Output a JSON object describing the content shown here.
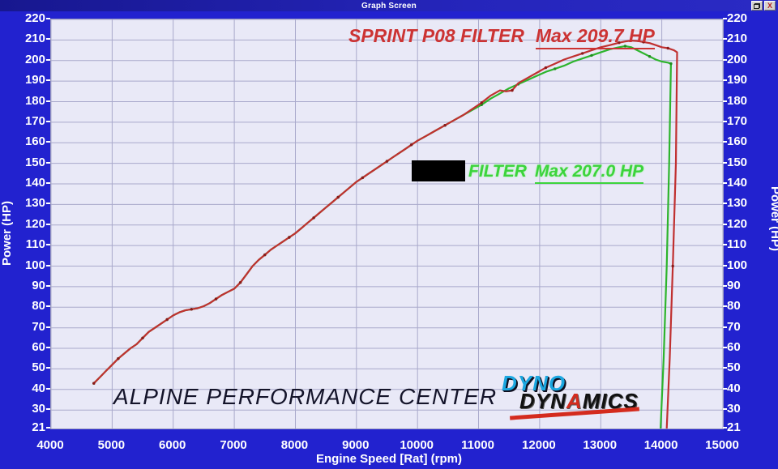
{
  "window": {
    "title": "Graph Screen",
    "restore_button": "restore",
    "close_button": "X"
  },
  "chart_data": {
    "type": "line",
    "xlabel": "Engine Speed [Rat] (rpm)",
    "ylabel_left": "Power (HP)",
    "ylabel_right": "Power (HP)",
    "xlim": [
      4000,
      15000
    ],
    "ylim": [
      21,
      220
    ],
    "x_ticks": [
      4000,
      5000,
      6000,
      7000,
      8000,
      9000,
      10000,
      11000,
      12000,
      13000,
      14000,
      15000
    ],
    "y_ticks": [
      220,
      210,
      200,
      190,
      180,
      170,
      160,
      150,
      140,
      130,
      120,
      110,
      100,
      90,
      80,
      70,
      60,
      50,
      40,
      30,
      21
    ],
    "grid": true,
    "legend_position": "annotations-on-plot",
    "series": [
      {
        "name": "SPRINT P08 FILTER",
        "max_label": "Max 209.7 HP",
        "max_hp": 209.7,
        "color": "#c03030",
        "marker_color": "#8b1a1a",
        "points": [
          [
            4700,
            43
          ],
          [
            4800,
            46
          ],
          [
            4900,
            49
          ],
          [
            5000,
            52
          ],
          [
            5100,
            55
          ],
          [
            5200,
            57.5
          ],
          [
            5300,
            60
          ],
          [
            5400,
            62
          ],
          [
            5500,
            65
          ],
          [
            5600,
            68
          ],
          [
            5700,
            70
          ],
          [
            5800,
            72
          ],
          [
            5900,
            74
          ],
          [
            6000,
            76
          ],
          [
            6100,
            77.5
          ],
          [
            6200,
            78.5
          ],
          [
            6300,
            79
          ],
          [
            6400,
            79.5
          ],
          [
            6500,
            80.5
          ],
          [
            6600,
            82
          ],
          [
            6700,
            84
          ],
          [
            6800,
            86
          ],
          [
            6900,
            87.5
          ],
          [
            7000,
            89
          ],
          [
            7100,
            92
          ],
          [
            7200,
            96
          ],
          [
            7300,
            100
          ],
          [
            7400,
            103
          ],
          [
            7500,
            105.5
          ],
          [
            7600,
            108
          ],
          [
            7700,
            110
          ],
          [
            7800,
            112
          ],
          [
            7900,
            114
          ],
          [
            8000,
            116
          ],
          [
            8100,
            118.5
          ],
          [
            8200,
            121
          ],
          [
            8300,
            123.5
          ],
          [
            8400,
            126
          ],
          [
            8500,
            128.5
          ],
          [
            8600,
            131
          ],
          [
            8700,
            133.5
          ],
          [
            8800,
            136
          ],
          [
            8900,
            138.5
          ],
          [
            9000,
            141
          ],
          [
            9100,
            143
          ],
          [
            9200,
            145
          ],
          [
            9300,
            147
          ],
          [
            9400,
            149
          ],
          [
            9500,
            151
          ],
          [
            9600,
            153
          ],
          [
            9700,
            155
          ],
          [
            9800,
            157
          ],
          [
            9900,
            159
          ],
          [
            10000,
            161
          ],
          [
            10150,
            163.5
          ],
          [
            10300,
            166
          ],
          [
            10450,
            168.5
          ],
          [
            10600,
            171
          ],
          [
            10750,
            173.5
          ],
          [
            10900,
            176.5
          ],
          [
            11050,
            179.5
          ],
          [
            11200,
            183
          ],
          [
            11350,
            185.5
          ],
          [
            11450,
            185
          ],
          [
            11550,
            185.5
          ],
          [
            11650,
            189
          ],
          [
            11800,
            191.5
          ],
          [
            11950,
            194
          ],
          [
            12100,
            196.5
          ],
          [
            12250,
            198.5
          ],
          [
            12400,
            200.5
          ],
          [
            12550,
            202
          ],
          [
            12700,
            203.5
          ],
          [
            12850,
            205
          ],
          [
            13000,
            206.5
          ],
          [
            13150,
            207.5
          ],
          [
            13300,
            208.7
          ],
          [
            13400,
            209.3
          ],
          [
            13500,
            209.7
          ],
          [
            13600,
            209.5
          ],
          [
            13700,
            209
          ],
          [
            13800,
            208.5
          ],
          [
            13900,
            207.5
          ],
          [
            14000,
            206.5
          ],
          [
            14100,
            206
          ],
          [
            14200,
            205
          ],
          [
            14250,
            204
          ],
          [
            14230,
            150
          ],
          [
            14180,
            100
          ],
          [
            14130,
            55
          ],
          [
            14080,
            21
          ]
        ]
      },
      {
        "name": "FILTER",
        "redacted_prefix": true,
        "max_label": "Max 207.0 HP",
        "max_hp": 207.0,
        "color": "#2db42d",
        "marker_color": "#1f8c1f",
        "points": [
          [
            4700,
            43
          ],
          [
            4800,
            46
          ],
          [
            4900,
            49
          ],
          [
            5000,
            52
          ],
          [
            5100,
            55
          ],
          [
            5200,
            57.5
          ],
          [
            5300,
            60
          ],
          [
            5400,
            62
          ],
          [
            5500,
            65
          ],
          [
            5600,
            68
          ],
          [
            5700,
            70
          ],
          [
            5800,
            72
          ],
          [
            5900,
            74
          ],
          [
            6000,
            76
          ],
          [
            6100,
            77.5
          ],
          [
            6200,
            78.5
          ],
          [
            6300,
            79
          ],
          [
            6400,
            79.5
          ],
          [
            6500,
            80.5
          ],
          [
            6600,
            82
          ],
          [
            6700,
            84
          ],
          [
            6800,
            86
          ],
          [
            6900,
            87.5
          ],
          [
            7000,
            89
          ],
          [
            7100,
            92
          ],
          [
            7200,
            96
          ],
          [
            7300,
            100
          ],
          [
            7400,
            103
          ],
          [
            7500,
            105.5
          ],
          [
            7600,
            108
          ],
          [
            7700,
            110
          ],
          [
            7800,
            112
          ],
          [
            7900,
            114
          ],
          [
            8000,
            116
          ],
          [
            8100,
            118.5
          ],
          [
            8200,
            121
          ],
          [
            8300,
            123.5
          ],
          [
            8400,
            126
          ],
          [
            8500,
            128.5
          ],
          [
            8600,
            131
          ],
          [
            8700,
            133.5
          ],
          [
            8800,
            136
          ],
          [
            8900,
            138.5
          ],
          [
            9000,
            141
          ],
          [
            9100,
            143
          ],
          [
            9200,
            145
          ],
          [
            9300,
            147
          ],
          [
            9400,
            149
          ],
          [
            9500,
            151
          ],
          [
            9600,
            153
          ],
          [
            9700,
            155
          ],
          [
            9800,
            157
          ],
          [
            9900,
            159
          ],
          [
            10000,
            161
          ],
          [
            10150,
            163.5
          ],
          [
            10300,
            166
          ],
          [
            10450,
            168.5
          ],
          [
            10600,
            171
          ],
          [
            10750,
            173.5
          ],
          [
            10900,
            176
          ],
          [
            11050,
            178.5
          ],
          [
            11200,
            181.5
          ],
          [
            11350,
            184
          ],
          [
            11500,
            186.5
          ],
          [
            11650,
            188.5
          ],
          [
            11800,
            190.5
          ],
          [
            11950,
            192.5
          ],
          [
            12100,
            194.5
          ],
          [
            12250,
            196
          ],
          [
            12400,
            197.5
          ],
          [
            12550,
            199.5
          ],
          [
            12700,
            201
          ],
          [
            12850,
            202.5
          ],
          [
            13000,
            204
          ],
          [
            13150,
            205.5
          ],
          [
            13300,
            206.5
          ],
          [
            13400,
            207
          ],
          [
            13500,
            206.5
          ],
          [
            13600,
            205
          ],
          [
            13700,
            203.5
          ],
          [
            13800,
            202
          ],
          [
            13900,
            200.5
          ],
          [
            14000,
            199.5
          ],
          [
            14100,
            199
          ],
          [
            14150,
            198.5
          ],
          [
            14120,
            150
          ],
          [
            14080,
            100
          ],
          [
            14030,
            55
          ],
          [
            13980,
            21
          ]
        ]
      }
    ]
  },
  "annotations": {
    "red_series_label": "SPRINT P08 FILTER",
    "red_max": "Max 209.7 HP",
    "green_series_label": "FILTER",
    "green_max": "Max 207.0 HP",
    "watermark": "ALPINE PERFORMANCE CENTER"
  },
  "logo": {
    "line1": "DYNO",
    "line2_part1": "DYN",
    "line2_part2": "A",
    "line2_part3": "MICS"
  },
  "colors": {
    "window_bg": "#2222cf",
    "plot_bg": "#e9e9f7",
    "gridline": "#a9a9cb",
    "red_series": "#c03030",
    "green_series": "#2db42d",
    "red_text": "#cc3333",
    "green_text": "#3cd43c",
    "logo_blue": "#1ba7e0",
    "logo_red": "#d42b1e"
  }
}
